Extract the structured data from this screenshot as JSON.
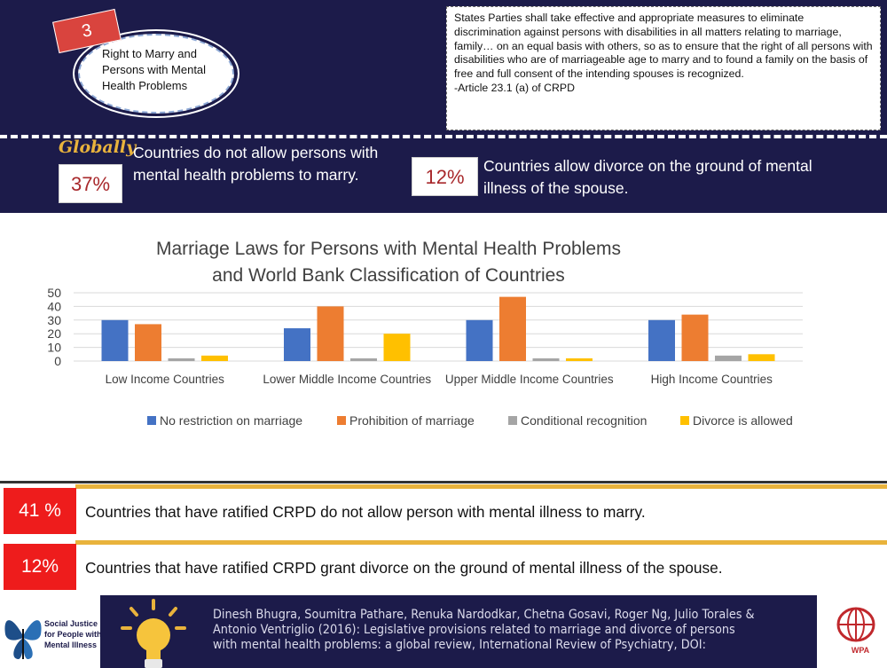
{
  "header": {
    "badge_number": "3",
    "ellipse_title": "Right to Marry and Persons with Mental Health Problems",
    "quote": "States Parties shall take effective and appropriate measures to eliminate discrimination against persons with disabilities in all matters relating to marriage, family… on an equal basis with others, so as to ensure that the right of all persons with disabilities who are of marriageable age to marry and to found a family on the basis of free and full consent of the intending spouses is recognized.",
    "quote_source": "-Article 23.1 (a) of CRPD"
  },
  "global_stats": {
    "label": "Globally",
    "stat1_value": "37%",
    "stat1_text": "Countries do not allow persons with mental health problems to marry.",
    "stat2_value": "12%",
    "stat2_text": "Countries allow divorce on the ground of mental illness of the spouse."
  },
  "chart_data": {
    "type": "bar",
    "title": "Marriage Laws for Persons with Mental Health Problems",
    "subtitle": "and World Bank Classification of Countries",
    "categories": [
      "Low Income Countries",
      "Lower Middle Income Countries",
      "Upper Middle Income Countries",
      "High Income Countries"
    ],
    "series": [
      {
        "name": "No restriction on marriage",
        "values": [
          30,
          24,
          30,
          30
        ],
        "color": "#4472c4"
      },
      {
        "name": "Prohibition of marriage",
        "values": [
          27,
          40,
          47,
          34
        ],
        "color": "#ed7d31"
      },
      {
        "name": "Conditional recognition",
        "values": [
          2,
          2,
          2,
          4
        ],
        "color": "#a5a5a5"
      },
      {
        "name": "Divorce is allowed",
        "values": [
          4,
          20,
          2,
          5
        ],
        "color": "#ffc000"
      }
    ],
    "yticks": [
      0,
      10,
      20,
      30,
      40,
      50
    ],
    "ylim": [
      0,
      50
    ],
    "grid": true,
    "legend": "bottom"
  },
  "crpd_stats": [
    {
      "value": "41 %",
      "text": "Countries that have ratified CRPD do not allow person with mental illness to marry."
    },
    {
      "value": "12%",
      "text": "Countries that have ratified CRPD grant divorce on the ground of mental illness of the spouse."
    }
  ],
  "footer": {
    "left_logo_text": "Social Justice for People with Mental Illness",
    "reference": "Dinesh Bhugra, Soumitra Pathare, Renuka Nardodkar, Chetna Gosavi, Roger Ng, Julio Torales & Antonio Ventriglio (2016): Legislative provisions related to marriage and divorce of persons with mental health problems: a global review, International Review of Psychiatry, DOI:",
    "right_logo_text": "WPA",
    "icons": [
      "butterfly-icon",
      "lightbulb-icon",
      "globe-icon"
    ],
    "colors": {
      "navy": "#1c1b4a",
      "gold": "#e9b33c",
      "red": "#ee1c1c"
    }
  }
}
